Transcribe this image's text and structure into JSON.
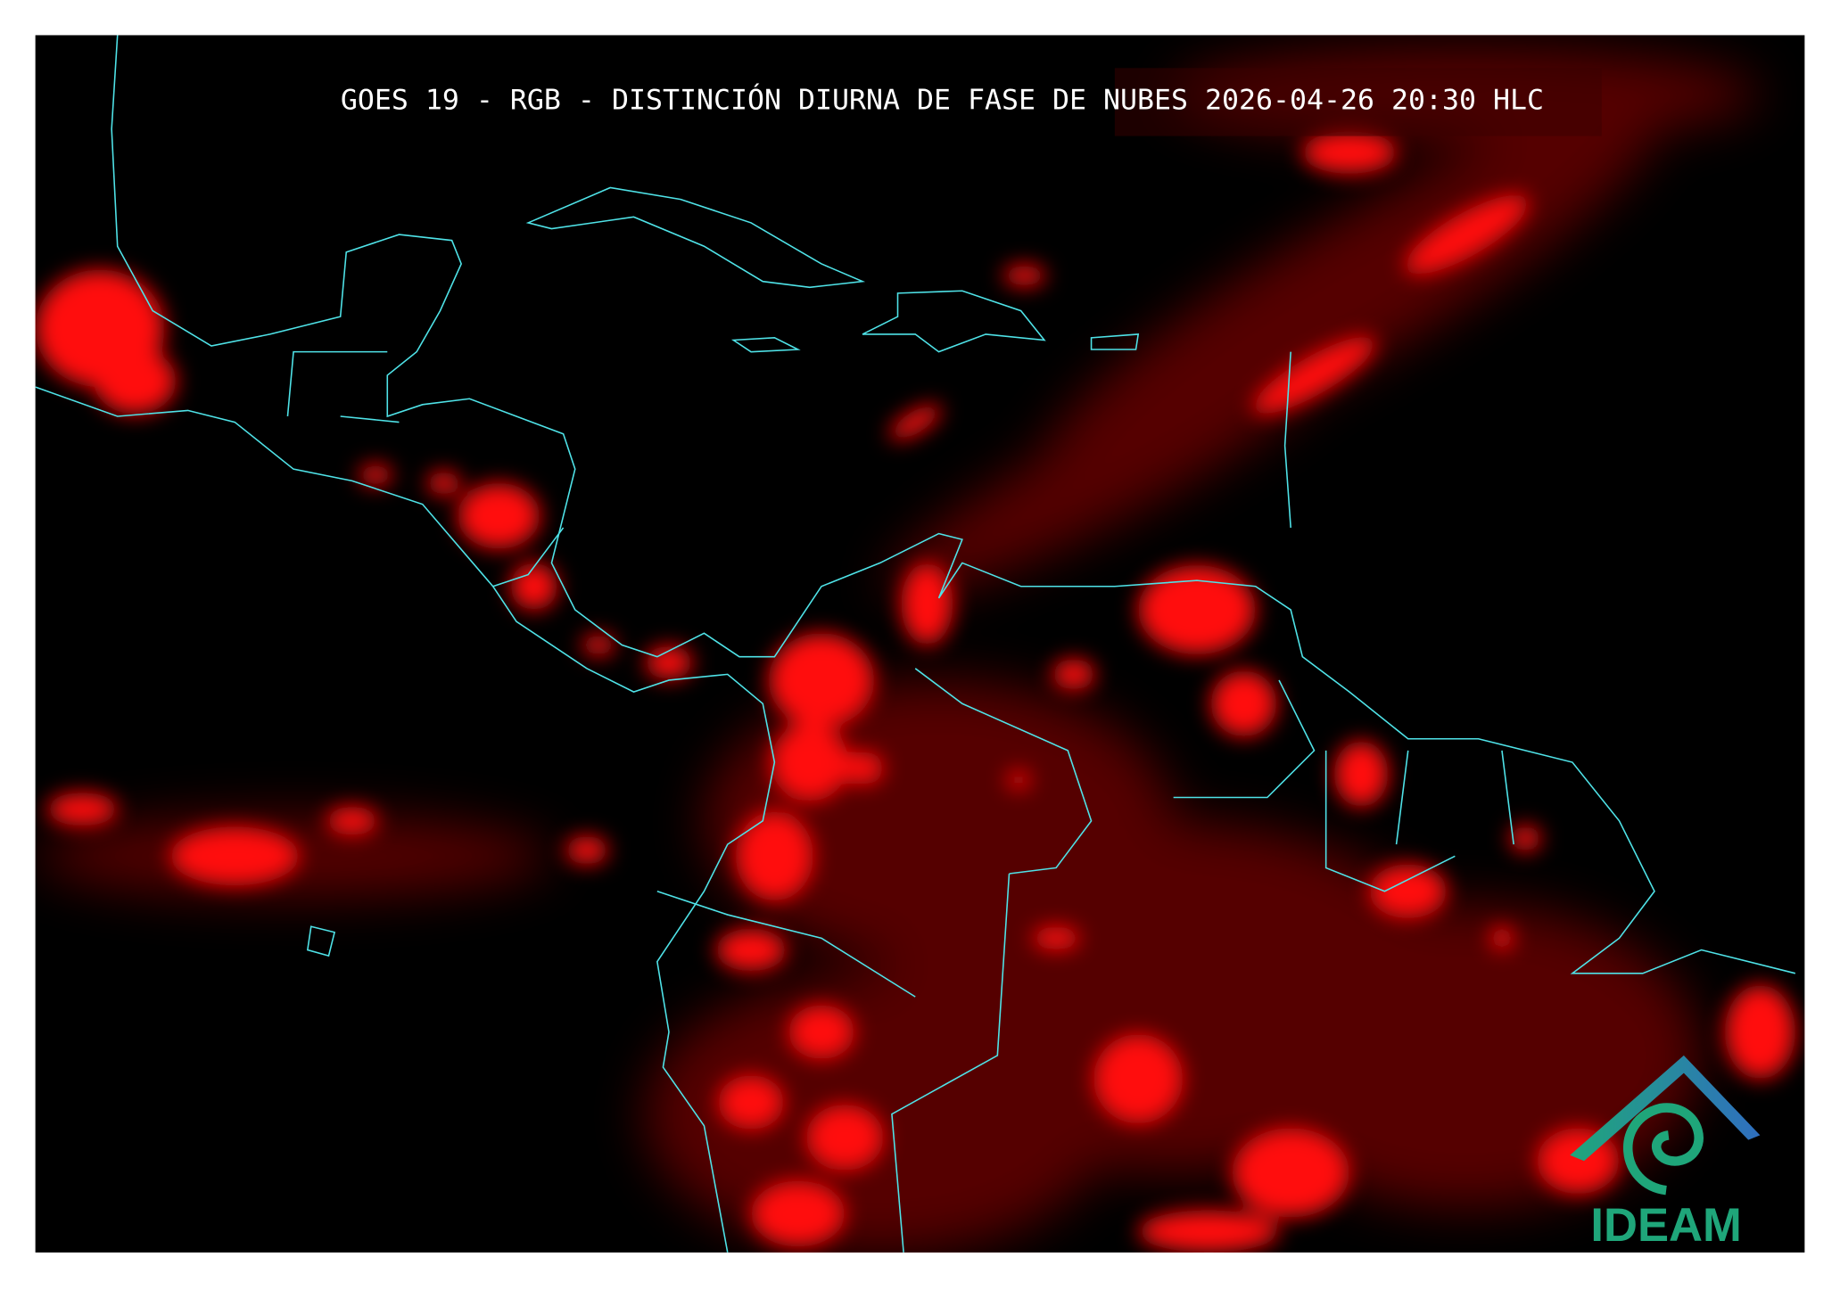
{
  "title": "GOES 19 - RGB - DISTINCIÓN DIURNA DE FASE DE NUBES 2026-04-26 20:30 HLC",
  "logo": "IDEAM"
}
